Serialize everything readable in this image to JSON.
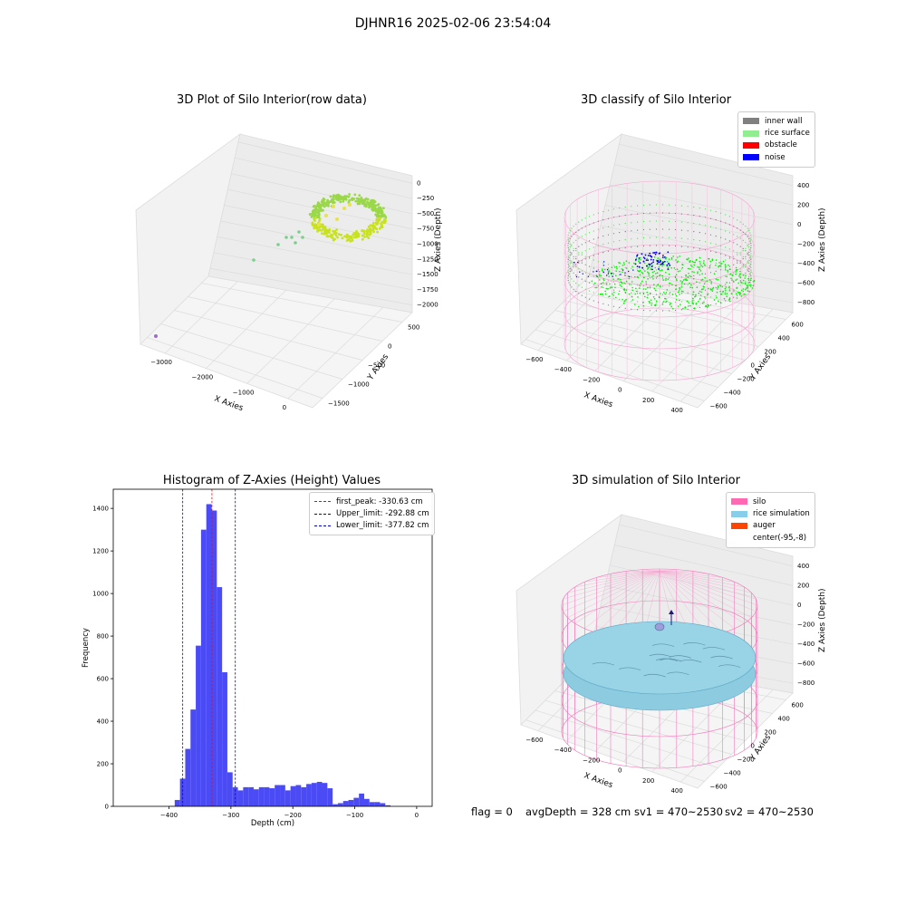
{
  "suptitle": "DJHNR16 2025-02-06 23:54:04",
  "panels": {
    "raw": {
      "title": "3D Plot of Silo Interior(row data)",
      "xlabel": "X Axies",
      "ylabel": "Y Axies",
      "zlabel": "Z Axies (Depth)",
      "xticks": [
        "−3000",
        "−2000",
        "−1000",
        "0"
      ],
      "yticks": [
        "500",
        "0",
        "−500",
        "−1000",
        "−1500"
      ],
      "zticks": [
        "0",
        "−250",
        "−500",
        "−750",
        "−1000",
        "−1250",
        "−1500",
        "−1750",
        "−2000"
      ]
    },
    "classify": {
      "title": "3D classify of Silo Interior",
      "xlabel": "X Axies",
      "ylabel": "Y Axies",
      "zlabel": "Z Axies (Depth)",
      "xticks": [
        "−600",
        "−400",
        "−200",
        "0",
        "200",
        "400"
      ],
      "yticks": [
        "600",
        "400",
        "200",
        "0",
        "−200",
        "−400",
        "−600"
      ],
      "zticks": [
        "400",
        "200",
        "0",
        "−200",
        "−400",
        "−600",
        "−800"
      ],
      "legend": [
        {
          "label": "inner wall",
          "color": "#808080"
        },
        {
          "label": "rice surface",
          "color": "#90ee90"
        },
        {
          "label": "obstacle",
          "color": "#ff0000"
        },
        {
          "label": "noise",
          "color": "#0000ff"
        }
      ]
    },
    "histogram": {
      "title": "Histogram of Z-Axies (Height) Values",
      "legend": [
        {
          "label": "first_peak: -330.63 cm",
          "color": "#ff0000"
        },
        {
          "label": "Upper_limit: -292.88 cm",
          "color": "#0000cc"
        },
        {
          "label": "Lower_limit: -377.82 cm",
          "color": "#0000cc"
        }
      ]
    },
    "simulation": {
      "title": "3D simulation of Silo Interior",
      "xlabel": "X Axies",
      "ylabel": "Y Axies",
      "zlabel": "Z Axies (Depth)",
      "xticks": [
        "−600",
        "−400",
        "−200",
        "0",
        "200",
        "400"
      ],
      "yticks": [
        "600",
        "400",
        "200",
        "0",
        "−200",
        "−400",
        "−600"
      ],
      "zticks": [
        "400",
        "200",
        "0",
        "−200",
        "−400",
        "−600",
        "−800"
      ],
      "legend": [
        {
          "label": "silo",
          "color": "#ff69b4"
        },
        {
          "label": "rice simulation",
          "color": "#87ceeb"
        },
        {
          "label": "auger",
          "color": "#ff4500"
        },
        {
          "label": "center(-95,-8)",
          "color": ""
        }
      ]
    }
  },
  "status": {
    "flag": "flag = 0",
    "avg_depth": "avgDepth = 328 cm",
    "sv1": "sv1 = 470~2530",
    "sv2": "sv2 = 470~2530"
  },
  "chart_data": [
    {
      "type": "scatter",
      "title": "3D Plot of Silo Interior(row data)",
      "xlabel": "X Axies",
      "ylabel": "Y Axies",
      "zlabel": "Z Axies (Depth)",
      "xlim": [
        -3700,
        700
      ],
      "ylim": [
        -1600,
        800
      ],
      "zlim": [
        -2100,
        100
      ]
    },
    {
      "type": "scatter",
      "title": "3D classify of Silo Interior",
      "xlabel": "X Axies",
      "ylabel": "Y Axies",
      "zlabel": "Z Axies (Depth)",
      "series": [
        {
          "name": "inner wall"
        },
        {
          "name": "rice surface"
        },
        {
          "name": "obstacle"
        },
        {
          "name": "noise"
        }
      ]
    },
    {
      "type": "bar",
      "title": "Histogram of Z-Axies (Height) Values",
      "xlabel": "Depth (cm)",
      "ylabel": "Frequency",
      "xlim": [
        -490,
        25
      ],
      "ylim": [
        0,
        1490
      ],
      "xticks": [
        -400,
        -300,
        -200,
        -100,
        0
      ],
      "yticks": [
        0,
        200,
        400,
        600,
        800,
        1000,
        1200,
        1400
      ],
      "bin_width": 8.5,
      "bins": [
        [
          -395,
          2
        ],
        [
          -386.5,
          30
        ],
        [
          -378,
          130
        ],
        [
          -369.5,
          270
        ],
        [
          -361,
          455
        ],
        [
          -352.5,
          755
        ],
        [
          -344,
          1300
        ],
        [
          -335.5,
          1420
        ],
        [
          -327,
          1390
        ],
        [
          -318.5,
          1030
        ],
        [
          -310,
          630
        ],
        [
          -301.5,
          160
        ],
        [
          -293,
          90
        ],
        [
          -284.5,
          75
        ],
        [
          -276,
          90
        ],
        [
          -267.5,
          90
        ],
        [
          -259,
          80
        ],
        [
          -250.5,
          90
        ],
        [
          -242,
          90
        ],
        [
          -233.5,
          85
        ],
        [
          -225,
          100
        ],
        [
          -216.5,
          100
        ],
        [
          -208,
          75
        ],
        [
          -199.5,
          95
        ],
        [
          -191,
          100
        ],
        [
          -182.5,
          90
        ],
        [
          -174,
          105
        ],
        [
          -165.5,
          110
        ],
        [
          -157,
          115
        ],
        [
          -148.5,
          110
        ],
        [
          -140,
          85
        ],
        [
          -131.5,
          10
        ],
        [
          -123,
          15
        ],
        [
          -114.5,
          25
        ],
        [
          -106,
          30
        ],
        [
          -97.5,
          40
        ],
        [
          -89,
          60
        ],
        [
          -80.5,
          35
        ],
        [
          -72,
          20
        ],
        [
          -63.5,
          20
        ],
        [
          -55,
          15
        ],
        [
          -46.5,
          5
        ]
      ],
      "bar_color": "#4b4bf5",
      "vlines": [
        {
          "name": "first_peak",
          "x": -330.63,
          "color": "#ff0000"
        },
        {
          "name": "Upper_limit",
          "x": -292.88,
          "color": "#0000cc"
        },
        {
          "name": "Lower_limit",
          "x": -377.82,
          "color": "#0000cc"
        }
      ],
      "legend_position": "upper right"
    },
    {
      "type": "scatter",
      "title": "3D simulation of Silo Interior",
      "xlabel": "X Axies",
      "ylabel": "Y Axies",
      "zlabel": "Z Axies (Depth)",
      "series": [
        {
          "name": "silo"
        },
        {
          "name": "rice simulation"
        },
        {
          "name": "auger"
        },
        {
          "name": "center(-95,-8)"
        }
      ]
    }
  ]
}
